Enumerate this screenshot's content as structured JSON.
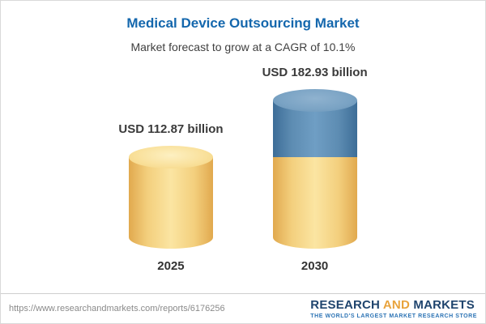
{
  "header": {
    "title": "Medical Device Outsourcing Market",
    "subtitle": "Market forecast to grow at a CAGR of 10.1%"
  },
  "chart_data": {
    "type": "bar",
    "title": "Medical Device Outsourcing Market",
    "subtitle": "Market forecast to grow at a CAGR of 10.1%",
    "cagr": "10.1%",
    "unit": "USD billion",
    "categories": [
      "2025",
      "2030"
    ],
    "values": [
      112.87,
      182.93
    ],
    "value_labels": [
      "USD 112.87 billion",
      "USD 182.93 billion"
    ],
    "ylim": [
      0,
      200
    ],
    "legend_position": "none",
    "grid": false,
    "colors": {
      "base_segment": "#F3CF7D",
      "growth_segment": "#5D8CB2"
    }
  },
  "bars": [
    {
      "year": "2025",
      "label": "USD 112.87 billion"
    },
    {
      "year": "2030",
      "label": "USD 182.93 billion"
    }
  ],
  "footer": {
    "url": "https://www.researchandmarkets.com/reports/6176256",
    "logo": {
      "research": "RESEARCH",
      "and": "AND",
      "markets": "MARKETS",
      "tagline": "THE WORLD'S LARGEST MARKET RESEARCH STORE"
    }
  }
}
